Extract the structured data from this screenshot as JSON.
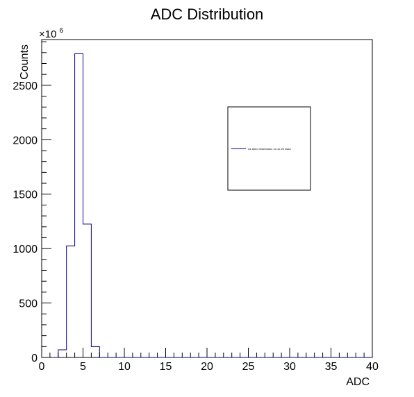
{
  "chart_data": {
    "type": "bar",
    "title": "ADC Distribution",
    "xlabel": "ADC",
    "ylabel": "Counts",
    "y_multiplier_label": "×10",
    "y_multiplier_exp": "6",
    "xlim": [
      0,
      40
    ],
    "ylim": [
      0,
      2920
    ],
    "x_ticks": [
      0,
      5,
      10,
      15,
      20,
      25,
      30,
      35,
      40
    ],
    "y_ticks": [
      0,
      500,
      1000,
      1500,
      2000,
      2500
    ],
    "grid": false,
    "legend_position": "top-right",
    "series": [
      {
        "name": "A1 ADC Distribution 1e-4x 20 Data",
        "color": "#000080",
        "bin_edges": [
          0,
          1,
          2,
          3,
          4,
          5,
          6,
          7,
          8,
          9,
          10,
          11,
          12,
          13,
          14,
          15,
          16,
          17,
          18,
          19,
          20,
          21,
          22,
          23,
          24,
          25,
          26,
          27,
          28,
          29,
          30,
          31,
          32,
          33,
          34,
          35,
          36,
          37,
          38,
          39,
          40
        ],
        "values": [
          0,
          0,
          70,
          1025,
          2790,
          1225,
          100,
          0,
          0,
          0,
          0,
          0,
          0,
          0,
          0,
          0,
          0,
          0,
          0,
          0,
          0,
          0,
          0,
          0,
          0,
          0,
          0,
          0,
          0,
          0,
          0,
          0,
          0,
          0,
          0,
          0,
          0,
          0,
          0,
          0
        ]
      }
    ]
  }
}
